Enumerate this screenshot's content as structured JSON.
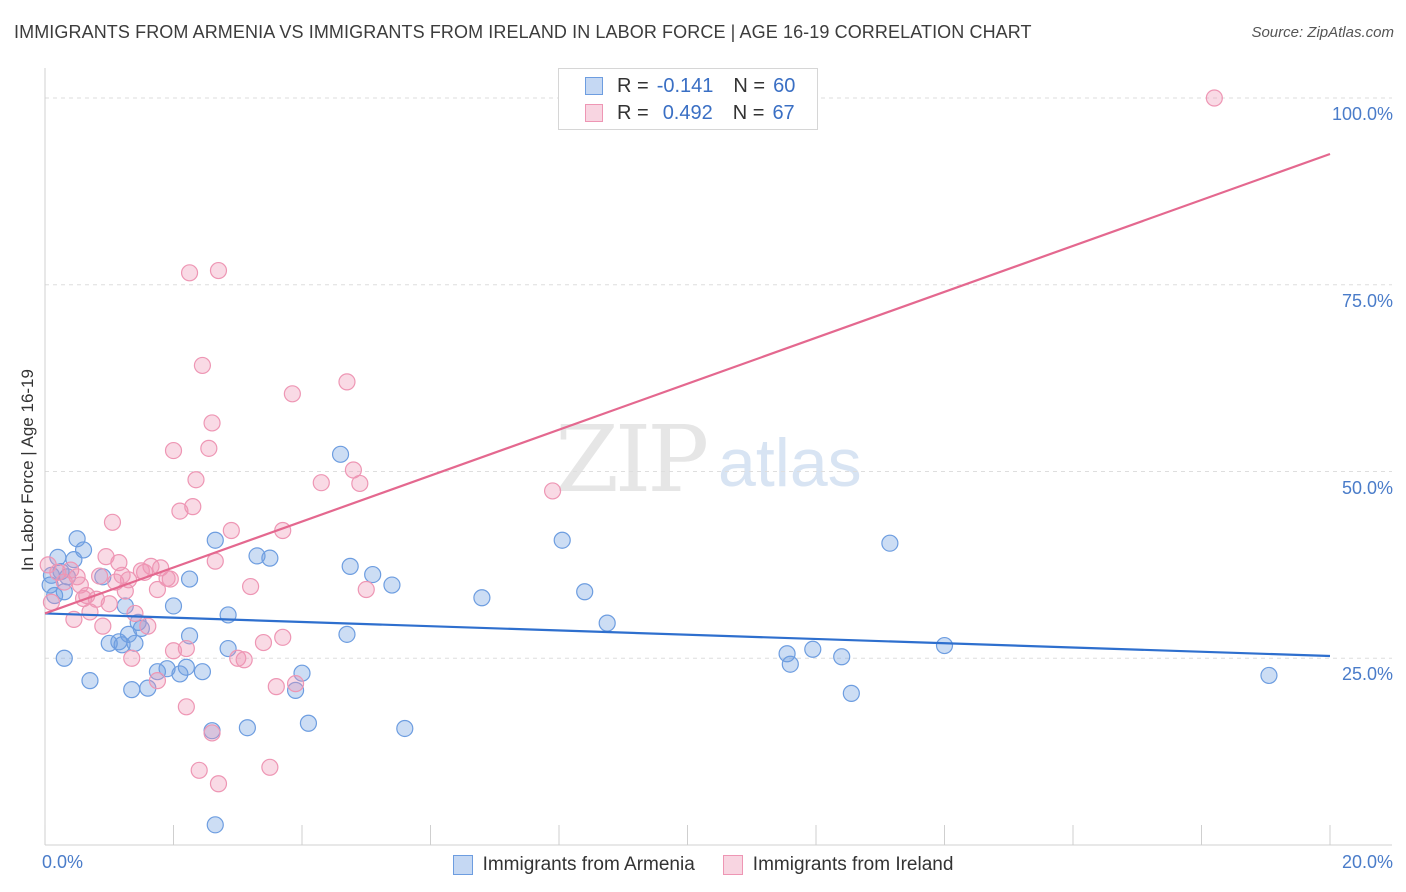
{
  "header": {
    "title": "IMMIGRANTS FROM ARMENIA VS IMMIGRANTS FROM IRELAND IN LABOR FORCE | AGE 16-19 CORRELATION CHART",
    "source": "Source: ZipAtlas.com"
  },
  "watermark": {
    "zip": "ZIP",
    "atlas": "atlas"
  },
  "legend": {
    "armenia": {
      "r_label": "R =",
      "r_value": "-0.141",
      "n_label": "N =",
      "n_value": "60"
    },
    "ireland": {
      "r_label": "R =",
      "r_value": "0.492",
      "n_label": "N =",
      "n_value": "67"
    }
  },
  "chart_data": {
    "type": "scatter",
    "title": "IMMIGRANTS FROM ARMENIA VS IMMIGRANTS FROM IRELAND IN LABOR FORCE | AGE 16-19 CORRELATION CHART",
    "xlabel": "",
    "ylabel": "In Labor Force | Age 16-19",
    "xlim": [
      0,
      20
    ],
    "ylim": [
      0,
      103
    ],
    "x_ticks": [
      0,
      20
    ],
    "x_tick_labels": [
      "0.0%",
      "20.0%"
    ],
    "y_ticks": [
      25,
      50,
      75,
      100
    ],
    "y_tick_labels": [
      "25.0%",
      "50.0%",
      "75.0%",
      "100.0%"
    ],
    "colors": {
      "armenia": "#6d9de0",
      "ireland": "#ee96b4",
      "armenia_line": "#2e6fce",
      "ireland_line": "#e4688f"
    },
    "series": [
      {
        "name": "Immigrants from Armenia",
        "key": "armenia",
        "r": -0.141,
        "n": 60,
        "trend": {
          "x": [
            0,
            20
          ],
          "y": [
            31.0,
            25.3
          ]
        },
        "points": [
          [
            0.08,
            34.8
          ],
          [
            0.1,
            36.1
          ],
          [
            0.15,
            33.4
          ],
          [
            0.2,
            38.5
          ],
          [
            0.25,
            36.6
          ],
          [
            0.3,
            33.9
          ],
          [
            0.35,
            35.9
          ],
          [
            0.45,
            38.2
          ],
          [
            0.5,
            41.0
          ],
          [
            0.6,
            39.5
          ],
          [
            0.9,
            35.9
          ],
          [
            1.0,
            27.0
          ],
          [
            1.15,
            27.2
          ],
          [
            1.2,
            26.8
          ],
          [
            1.25,
            32.0
          ],
          [
            1.3,
            28.2
          ],
          [
            1.4,
            27.0
          ],
          [
            1.45,
            29.8
          ],
          [
            1.5,
            29.0
          ],
          [
            1.6,
            21.0
          ],
          [
            1.75,
            23.2
          ],
          [
            1.9,
            23.6
          ],
          [
            2.0,
            32.0
          ],
          [
            2.1,
            22.9
          ],
          [
            2.2,
            23.8
          ],
          [
            2.25,
            35.6
          ],
          [
            2.45,
            23.2
          ],
          [
            2.6,
            15.3
          ],
          [
            2.65,
            40.8
          ],
          [
            2.65,
            2.7
          ],
          [
            2.85,
            30.8
          ],
          [
            2.85,
            26.3
          ],
          [
            3.15,
            15.7
          ],
          [
            3.3,
            38.7
          ],
          [
            3.5,
            38.4
          ],
          [
            3.9,
            20.7
          ],
          [
            4.0,
            23.0
          ],
          [
            4.1,
            16.3
          ],
          [
            4.6,
            52.3
          ],
          [
            4.7,
            28.2
          ],
          [
            4.75,
            37.3
          ],
          [
            5.1,
            36.2
          ],
          [
            5.4,
            34.8
          ],
          [
            5.6,
            15.6
          ],
          [
            6.8,
            33.1
          ],
          [
            8.05,
            40.8
          ],
          [
            8.4,
            33.9
          ],
          [
            8.75,
            29.7
          ],
          [
            11.55,
            25.6
          ],
          [
            11.6,
            24.2
          ],
          [
            11.95,
            26.2
          ],
          [
            12.4,
            25.2
          ],
          [
            12.55,
            20.3
          ],
          [
            13.15,
            40.4
          ],
          [
            14.0,
            26.7
          ],
          [
            19.05,
            22.7
          ],
          [
            0.3,
            25.0
          ],
          [
            0.7,
            22.0
          ],
          [
            1.35,
            20.8
          ],
          [
            2.25,
            28.0
          ]
        ]
      },
      {
        "name": "Immigrants from Ireland",
        "key": "ireland",
        "r": 0.492,
        "n": 67,
        "trend": {
          "x": [
            0,
            20
          ],
          "y": [
            31.0,
            92.5
          ]
        },
        "points": [
          [
            0.05,
            37.5
          ],
          [
            0.1,
            32.5
          ],
          [
            0.2,
            36.5
          ],
          [
            0.3,
            35.2
          ],
          [
            0.4,
            36.8
          ],
          [
            0.5,
            35.9
          ],
          [
            0.55,
            34.8
          ],
          [
            0.65,
            33.4
          ],
          [
            0.7,
            31.2
          ],
          [
            0.8,
            32.9
          ],
          [
            0.9,
            29.3
          ],
          [
            0.95,
            38.6
          ],
          [
            1.0,
            32.3
          ],
          [
            1.05,
            43.2
          ],
          [
            1.1,
            35.2
          ],
          [
            1.15,
            37.8
          ],
          [
            1.2,
            36.1
          ],
          [
            1.3,
            35.5
          ],
          [
            1.4,
            31.0
          ],
          [
            1.5,
            36.7
          ],
          [
            1.6,
            29.3
          ],
          [
            1.65,
            37.3
          ],
          [
            1.75,
            34.2
          ],
          [
            1.8,
            37.1
          ],
          [
            1.9,
            35.7
          ],
          [
            1.95,
            35.6
          ],
          [
            2.0,
            52.8
          ],
          [
            2.1,
            44.7
          ],
          [
            2.2,
            26.3
          ],
          [
            2.25,
            76.6
          ],
          [
            2.3,
            45.3
          ],
          [
            2.35,
            48.9
          ],
          [
            2.45,
            64.2
          ],
          [
            2.55,
            53.1
          ],
          [
            2.6,
            56.5
          ],
          [
            2.65,
            38.0
          ],
          [
            2.7,
            76.9
          ],
          [
            2.9,
            42.1
          ],
          [
            3.0,
            25.0
          ],
          [
            3.2,
            34.6
          ],
          [
            3.4,
            27.1
          ],
          [
            3.5,
            10.4
          ],
          [
            3.7,
            42.1
          ],
          [
            3.85,
            60.4
          ],
          [
            4.7,
            62.0
          ],
          [
            4.8,
            50.2
          ],
          [
            4.9,
            48.4
          ],
          [
            5.0,
            34.2
          ],
          [
            7.9,
            47.4
          ],
          [
            18.2,
            100.0
          ],
          [
            2.4,
            10.0
          ],
          [
            2.7,
            8.2
          ],
          [
            2.6,
            15.0
          ],
          [
            2.2,
            18.5
          ],
          [
            1.75,
            22.0
          ],
          [
            1.35,
            25.0
          ],
          [
            0.45,
            30.2
          ],
          [
            0.6,
            33.0
          ],
          [
            0.85,
            36.0
          ],
          [
            1.25,
            34.0
          ],
          [
            3.6,
            21.2
          ],
          [
            3.9,
            21.6
          ],
          [
            4.3,
            48.5
          ],
          [
            1.55,
            36.5
          ],
          [
            3.1,
            24.8
          ],
          [
            2.0,
            26.0
          ],
          [
            3.7,
            27.8
          ]
        ]
      }
    ]
  }
}
